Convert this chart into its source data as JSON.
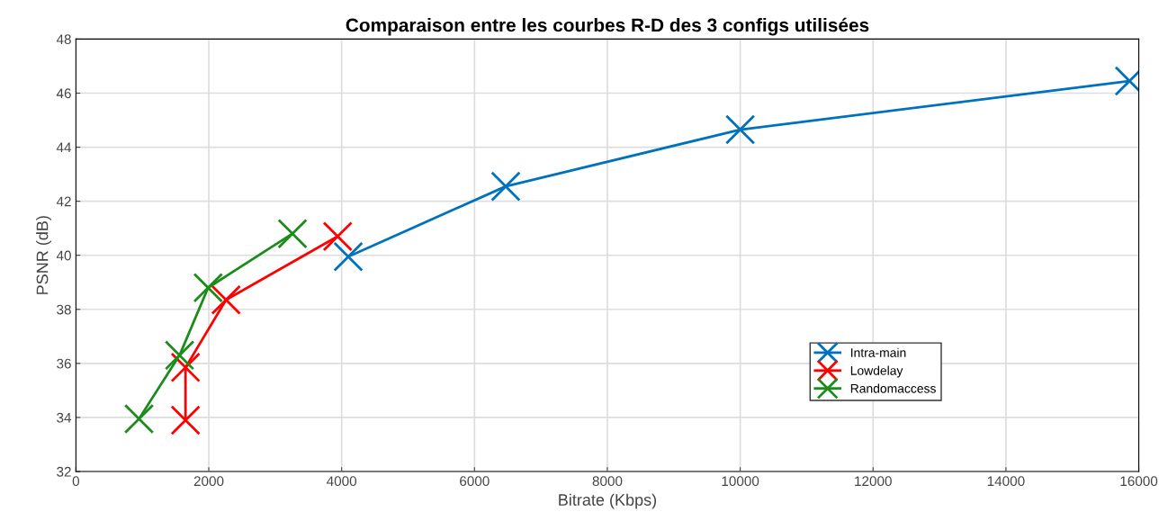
{
  "chart_data": {
    "type": "line",
    "title": "Comparaison entre les courbes R-D des 3 configs utilisées",
    "xlabel": "Bitrate (Kbps)",
    "ylabel": "PSNR (dB)",
    "xlim": [
      0,
      16000
    ],
    "xticks": [
      0,
      2000,
      4000,
      6000,
      8000,
      10000,
      12000,
      14000,
      16000
    ],
    "ylim": [
      32,
      48
    ],
    "yticks": [
      32,
      34,
      36,
      38,
      40,
      42,
      44,
      46,
      48
    ],
    "grid": true,
    "legend": "lower right",
    "line_style": "solid",
    "series": [
      {
        "name": "Intra-main",
        "color": "#0072bd",
        "marker": "cross",
        "x": [
          4100,
          6470,
          10000,
          15860
        ],
        "values": [
          39.95,
          42.55,
          44.65,
          46.45
        ]
      },
      {
        "name": "Lowdelay",
        "color": "#ff0000",
        "marker": "cross",
        "x": [
          1650,
          1650,
          2260,
          3940
        ],
        "values": [
          33.9,
          35.85,
          38.35,
          40.7
        ]
      },
      {
        "name": "Randomaccess",
        "color": "#1a8c1a",
        "marker": "cross",
        "x": [
          950,
          1560,
          1990,
          3260
        ],
        "values": [
          33.95,
          36.3,
          38.8,
          40.8
        ]
      }
    ]
  }
}
